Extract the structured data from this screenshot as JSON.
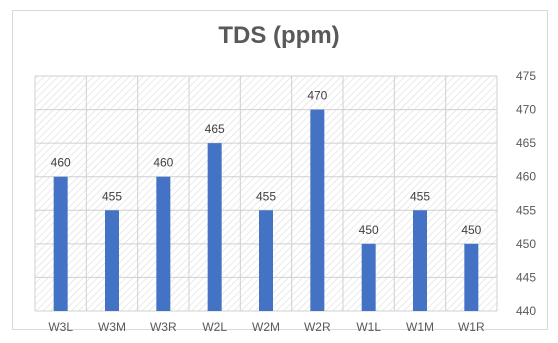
{
  "chart_data": {
    "type": "bar",
    "title": "TDS (ppm)",
    "categories": [
      "W3L",
      "W3M",
      "W3R",
      "W2L",
      "W2M",
      "W2R",
      "W1L",
      "W1M",
      "W1R"
    ],
    "values": [
      460,
      455,
      460,
      465,
      455,
      470,
      450,
      455,
      450
    ],
    "ylim": [
      440,
      475
    ],
    "yticks": [
      440,
      445,
      450,
      455,
      460,
      465,
      470,
      475
    ],
    "y_axis_side": "right",
    "grid": true,
    "data_labels": true,
    "legend": "none",
    "bar_color": "#4472c4"
  }
}
